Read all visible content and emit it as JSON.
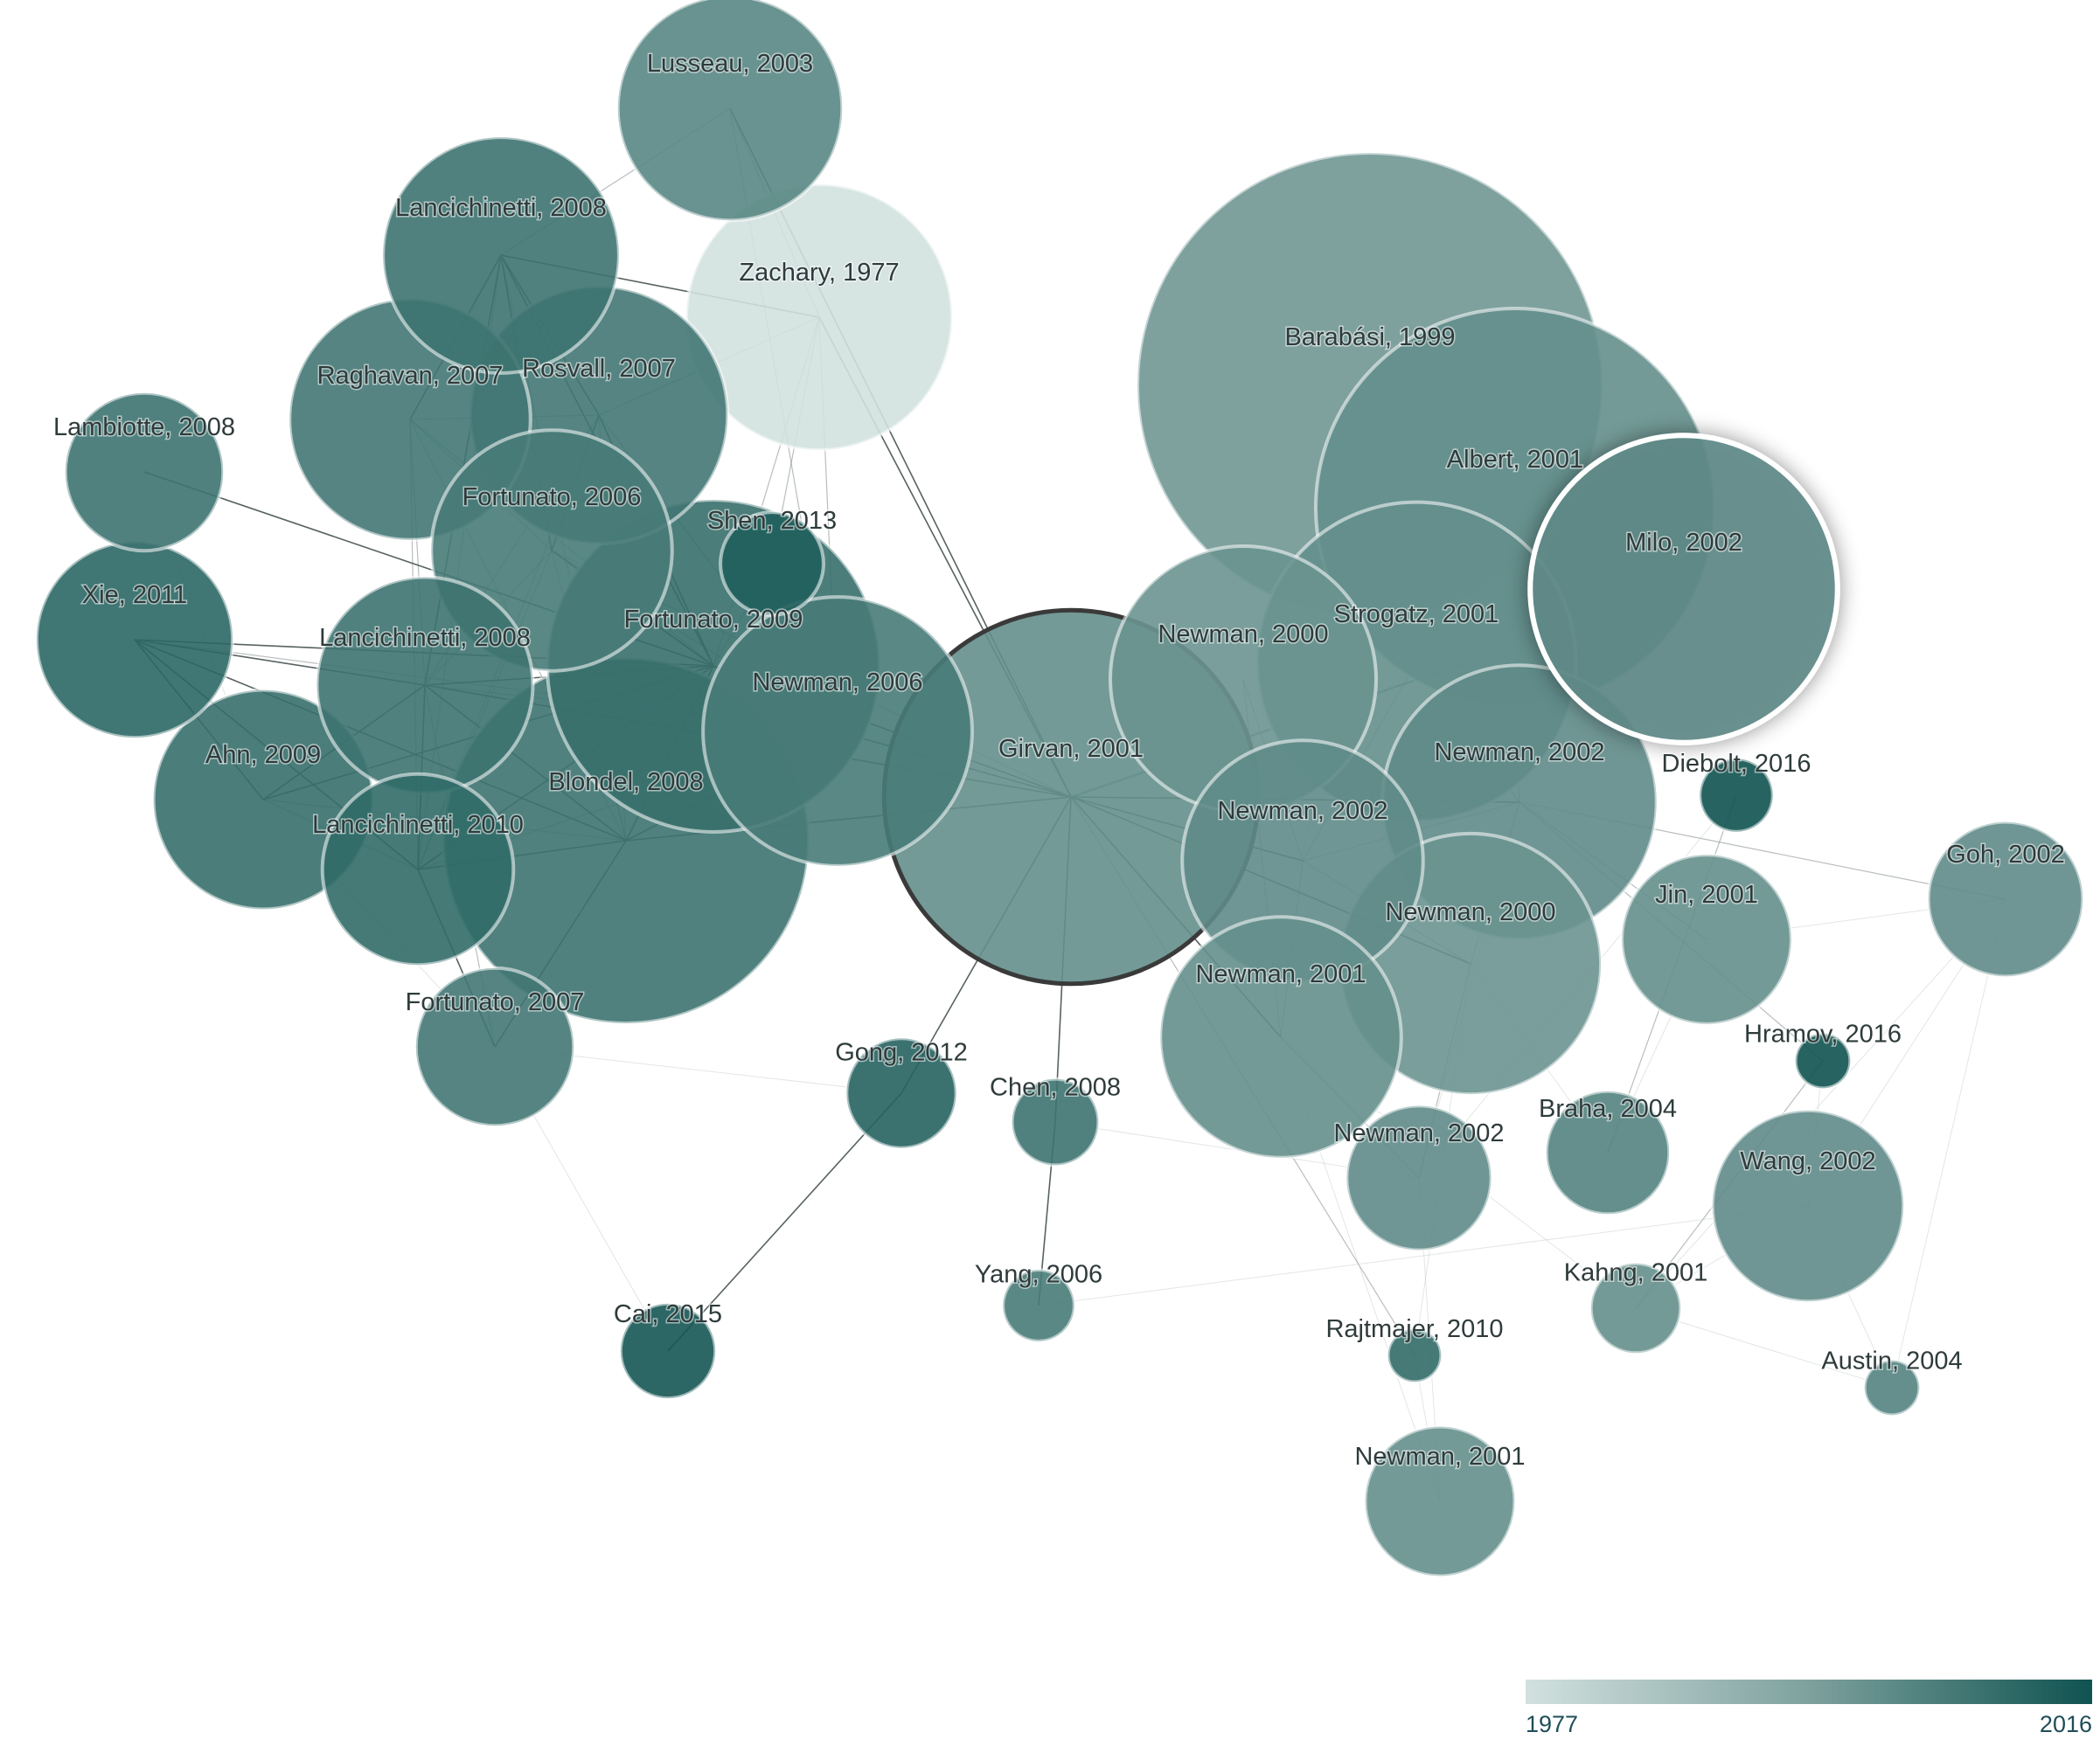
{
  "graph": {
    "selected": "girvan2001",
    "hovered": "milo2002",
    "nodes": [
      {
        "id": "lusseau2003",
        "label": "Lusseau, 2003",
        "year": 2003,
        "size": 1.35
      },
      {
        "id": "lancichinetti2008a",
        "label": "Lancichinetti, 2008",
        "year": 2008,
        "size": 1.42
      },
      {
        "id": "zachary1977",
        "label": "Zachary, 1977",
        "year": 1977,
        "size": 1.6
      },
      {
        "id": "raghavan2007",
        "label": "Raghavan, 2007",
        "year": 2007,
        "size": 1.45
      },
      {
        "id": "rosvall2007",
        "label": "Rosvall, 2007",
        "year": 2007,
        "size": 1.55
      },
      {
        "id": "lambiotte2008",
        "label": "Lambiotte, 2008",
        "year": 2008,
        "size": 0.95
      },
      {
        "id": "fortunato2006",
        "label": "Fortunato, 2006",
        "year": 2006,
        "size": 1.45
      },
      {
        "id": "shen2013",
        "label": "Shen, 2013",
        "year": 2013,
        "size": 0.62
      },
      {
        "id": "xie2011",
        "label": "Xie, 2011",
        "year": 2011,
        "size": 1.18
      },
      {
        "id": "lancichinetti2008b",
        "label": "Lancichinetti, 2008",
        "year": 2008,
        "size": 1.3
      },
      {
        "id": "fortunato2009",
        "label": "Fortunato, 2009",
        "year": 2009,
        "size": 2.0
      },
      {
        "id": "newman2006",
        "label": "Newman, 2006",
        "year": 2006,
        "size": 1.62
      },
      {
        "id": "ahn2009",
        "label": "Ahn, 2009",
        "year": 2009,
        "size": 1.32
      },
      {
        "id": "blondel2008",
        "label": "Blondel, 2008",
        "year": 2008,
        "size": 2.2
      },
      {
        "id": "lancichinetti2010",
        "label": "Lancichinetti, 2010",
        "year": 2010,
        "size": 1.15
      },
      {
        "id": "girvan2001",
        "label": "Girvan, 2001",
        "year": 2001,
        "size": 2.25
      },
      {
        "id": "barabasi1999",
        "label": "Barabási, 1999",
        "year": 1999,
        "size": 2.8
      },
      {
        "id": "albert2001",
        "label": "Albert, 2001",
        "year": 2001,
        "size": 2.4
      },
      {
        "id": "milo2002",
        "label": "Milo, 2002",
        "year": 2002,
        "size": 1.85
      },
      {
        "id": "newman2000a",
        "label": "Newman, 2000",
        "year": 2000,
        "size": 1.6
      },
      {
        "id": "strogatz2001",
        "label": "Strogatz, 2001",
        "year": 2001,
        "size": 1.92
      },
      {
        "id": "diebolt2016",
        "label": "Diebolt, 2016",
        "year": 2016,
        "size": 0.44
      },
      {
        "id": "newman2002a",
        "label": "Newman, 2002",
        "year": 2002,
        "size": 1.65
      },
      {
        "id": "newman2002b",
        "label": "Newman, 2002",
        "year": 2002,
        "size": 1.45
      },
      {
        "id": "goh2002",
        "label": "Goh, 2002",
        "year": 2002,
        "size": 0.93
      },
      {
        "id": "jin2001",
        "label": "Jin, 2001",
        "year": 2001,
        "size": 1.02
      },
      {
        "id": "newman2000b",
        "label": "Newman, 2000",
        "year": 2000,
        "size": 1.57
      },
      {
        "id": "newman2001a",
        "label": "Newman, 2001",
        "year": 2001,
        "size": 1.45
      },
      {
        "id": "hramov2016",
        "label": "Hramov, 2016",
        "year": 2016,
        "size": 0.33
      },
      {
        "id": "fortunato2007",
        "label": "Fortunato, 2007",
        "year": 2007,
        "size": 0.95
      },
      {
        "id": "gong2012",
        "label": "Gong, 2012",
        "year": 2012,
        "size": 0.66
      },
      {
        "id": "chen2008",
        "label": "Chen, 2008",
        "year": 2008,
        "size": 0.52
      },
      {
        "id": "braha2004",
        "label": "Braha, 2004",
        "year": 2004,
        "size": 0.74
      },
      {
        "id": "newman2002c",
        "label": "Newman, 2002",
        "year": 2002,
        "size": 0.87
      },
      {
        "id": "wang2002",
        "label": "Wang, 2002",
        "year": 2002,
        "size": 1.15
      },
      {
        "id": "yang2006",
        "label": "Yang, 2006",
        "year": 2006,
        "size": 0.43
      },
      {
        "id": "kahng2001",
        "label": "Kahng, 2001",
        "year": 2001,
        "size": 0.54
      },
      {
        "id": "cai2015",
        "label": "Cai, 2015",
        "year": 2015,
        "size": 0.57
      },
      {
        "id": "rajtmajer2010",
        "label": "Rajtmajer, 2010",
        "year": 2010,
        "size": 0.32
      },
      {
        "id": "austin2004",
        "label": "Austin, 2004",
        "year": 2004,
        "size": 0.33
      },
      {
        "id": "newman2001b",
        "label": "Newman, 2001",
        "year": 2001,
        "size": 0.9
      }
    ],
    "edges": [
      [
        "girvan2001",
        "milo2002",
        "h"
      ],
      [
        "girvan2001",
        "newman2006",
        "s"
      ],
      [
        "girvan2001",
        "fortunato2009",
        "s"
      ],
      [
        "girvan2001",
        "blondel2008",
        "s"
      ],
      [
        "girvan2001",
        "lusseau2003",
        "s"
      ],
      [
        "girvan2001",
        "zachary1977",
        "s"
      ],
      [
        "girvan2001",
        "gong2012",
        "s"
      ],
      [
        "girvan2001",
        "chen2008",
        "s"
      ],
      [
        "girvan2001",
        "newman2002b",
        "s"
      ],
      [
        "girvan2001",
        "newman2001a",
        "s"
      ],
      [
        "girvan2001",
        "newman2000b",
        "s"
      ],
      [
        "girvan2001",
        "newman2002a",
        "s"
      ],
      [
        "girvan2001",
        "lancichinetti2008b",
        "s"
      ],
      [
        "girvan2001",
        "rajtmajer2010",
        "m"
      ],
      [
        "girvan2001",
        "fortunato2006",
        "m"
      ],
      [
        "gong2012",
        "cai2015",
        "s"
      ],
      [
        "chen2008",
        "yang2006",
        "s"
      ],
      [
        "lusseau2003",
        "lancichinetti2008a",
        "m"
      ],
      [
        "lusseau2003",
        "zachary1977",
        "m"
      ],
      [
        "lusseau2003",
        "newman2006",
        "m"
      ],
      [
        "zachary1977",
        "lancichinetti2008a",
        "s"
      ],
      [
        "zachary1977",
        "fortunato2009",
        "m"
      ],
      [
        "zachary1977",
        "newman2006",
        "m"
      ],
      [
        "zachary1977",
        "rosvall2007",
        "m"
      ],
      [
        "zachary1977",
        "shen2013",
        "m"
      ],
      [
        "lancichinetti2008a",
        "raghavan2007",
        "s"
      ],
      [
        "lancichinetti2008a",
        "rosvall2007",
        "s"
      ],
      [
        "lancichinetti2008a",
        "fortunato2006",
        "s"
      ],
      [
        "lancichinetti2008a",
        "lancichinetti2008b",
        "s"
      ],
      [
        "lancichinetti2008a",
        "fortunato2009",
        "s"
      ],
      [
        "lancichinetti2008a",
        "blondel2008",
        "m"
      ],
      [
        "lancichinetti2008a",
        "lancichinetti2010",
        "m"
      ],
      [
        "raghavan2007",
        "rosvall2007",
        "m"
      ],
      [
        "raghavan2007",
        "fortunato2006",
        "m"
      ],
      [
        "raghavan2007",
        "blondel2008",
        "m"
      ],
      [
        "raghavan2007",
        "lancichinetti2008b",
        "m"
      ],
      [
        "raghavan2007",
        "fortunato2009",
        "m"
      ],
      [
        "raghavan2007",
        "lancichinetti2010",
        "m"
      ],
      [
        "rosvall2007",
        "fortunato2006",
        "s"
      ],
      [
        "rosvall2007",
        "fortunato2009",
        "s"
      ],
      [
        "rosvall2007",
        "blondel2008",
        "m"
      ],
      [
        "rosvall2007",
        "lancichinetti2008b",
        "m"
      ],
      [
        "rosvall2007",
        "lancichinetti2010",
        "m"
      ],
      [
        "rosvall2007",
        "newman2006",
        "m"
      ],
      [
        "fortunato2006",
        "fortunato2009",
        "s"
      ],
      [
        "fortunato2006",
        "blondel2008",
        "m"
      ],
      [
        "fortunato2006",
        "lancichinetti2008b",
        "m"
      ],
      [
        "fortunato2006",
        "newman2006",
        "m"
      ],
      [
        "fortunato2006",
        "lancichinetti2010",
        "m"
      ],
      [
        "xie2011",
        "fortunato2009",
        "s"
      ],
      [
        "xie2011",
        "ahn2009",
        "s"
      ],
      [
        "xie2011",
        "lancichinetti2010",
        "s"
      ],
      [
        "xie2011",
        "lancichinetti2008b",
        "s"
      ],
      [
        "xie2011",
        "blondel2008",
        "s"
      ],
      [
        "xie2011",
        "newman2006",
        "m"
      ],
      [
        "lambiotte2008",
        "fortunato2009",
        "s"
      ],
      [
        "lambiotte2008",
        "ahn2009",
        "w"
      ],
      [
        "lancichinetti2008b",
        "fortunato2009",
        "s"
      ],
      [
        "lancichinetti2008b",
        "blondel2008",
        "s"
      ],
      [
        "lancichinetti2008b",
        "lancichinetti2010",
        "s"
      ],
      [
        "lancichinetti2008b",
        "ahn2009",
        "s"
      ],
      [
        "lancichinetti2008b",
        "newman2006",
        "m"
      ],
      [
        "lancichinetti2008b",
        "fortunato2007",
        "m"
      ],
      [
        "fortunato2009",
        "newman2006",
        "s"
      ],
      [
        "fortunato2009",
        "blondel2008",
        "s"
      ],
      [
        "fortunato2009",
        "lancichinetti2010",
        "s"
      ],
      [
        "fortunato2009",
        "ahn2009",
        "s"
      ],
      [
        "fortunato2009",
        "shen2013",
        "m"
      ],
      [
        "newman2006",
        "blondel2008",
        "s"
      ],
      [
        "newman2006",
        "lancichinetti2010",
        "m"
      ],
      [
        "blondel2008",
        "lancichinetti2010",
        "s"
      ],
      [
        "blondel2008",
        "fortunato2007",
        "s"
      ],
      [
        "blondel2008",
        "ahn2009",
        "m"
      ],
      [
        "lancichinetti2010",
        "fortunato2007",
        "s"
      ],
      [
        "lancichinetti2010",
        "ahn2009",
        "m"
      ],
      [
        "ahn2009",
        "fortunato2007",
        "w"
      ],
      [
        "fortunato2007",
        "gong2012",
        "w"
      ],
      [
        "barabasi1999",
        "albert2001",
        "m"
      ],
      [
        "barabasi1999",
        "strogatz2001",
        "m"
      ],
      [
        "barabasi1999",
        "newman2002b",
        "w"
      ],
      [
        "albert2001",
        "strogatz2001",
        "m"
      ],
      [
        "albert2001",
        "newman2002a",
        "m"
      ],
      [
        "strogatz2001",
        "newman2002a",
        "m"
      ],
      [
        "strogatz2001",
        "newman2002b",
        "m"
      ],
      [
        "newman2000a",
        "newman2002b",
        "m"
      ],
      [
        "newman2000a",
        "newman2001a",
        "m"
      ],
      [
        "newman2002a",
        "newman2002b",
        "m"
      ],
      [
        "newman2002a",
        "newman2000b",
        "m"
      ],
      [
        "newman2002a",
        "jin2001",
        "m"
      ],
      [
        "newman2002a",
        "goh2002",
        "m"
      ],
      [
        "newman2002a",
        "hramov2016",
        "m"
      ],
      [
        "newman2002a",
        "newman2002c",
        "w"
      ],
      [
        "newman2002b",
        "newman2001a",
        "m"
      ],
      [
        "newman2002b",
        "newman2000b",
        "m"
      ],
      [
        "newman2000b",
        "newman2002c",
        "m"
      ],
      [
        "newman2000b",
        "braha2004",
        "w"
      ],
      [
        "newman2000b",
        "rajtmajer2010",
        "w"
      ],
      [
        "newman2001a",
        "newman2002c",
        "m"
      ],
      [
        "newman2001a",
        "kahng2001",
        "w"
      ],
      [
        "newman2001a",
        "newman2001b",
        "w"
      ],
      [
        "jin2001",
        "braha2004",
        "w"
      ],
      [
        "jin2001",
        "goh2002",
        "w"
      ],
      [
        "diebolt2016",
        "braha2004",
        "m"
      ],
      [
        "diebolt2016",
        "newman2002c",
        "w"
      ],
      [
        "hramov2016",
        "kahng2001",
        "m"
      ],
      [
        "hramov2016",
        "wang2002",
        "w"
      ],
      [
        "goh2002",
        "wang2002",
        "w"
      ],
      [
        "goh2002",
        "austin2004",
        "w"
      ],
      [
        "goh2002",
        "kahng2001",
        "w"
      ],
      [
        "wang2002",
        "austin2004",
        "w"
      ],
      [
        "wang2002",
        "kahng2001",
        "w"
      ],
      [
        "kahng2001",
        "austin2004",
        "w"
      ],
      [
        "rajtmajer2010",
        "newman2001b",
        "w"
      ],
      [
        "newman2002c",
        "newman2001b",
        "w"
      ],
      [
        "yang2006",
        "wang2002",
        "w"
      ],
      [
        "cai2015",
        "fortunato2007",
        "w"
      ],
      [
        "chen2008",
        "newman2002c",
        "w"
      ]
    ]
  },
  "legend": {
    "min_label": "1977",
    "max_label": "2016",
    "year_min": 1977,
    "year_max": 2016,
    "colors": [
      "#d2e1df",
      "#7ea19e",
      "#0f5350"
    ]
  }
}
